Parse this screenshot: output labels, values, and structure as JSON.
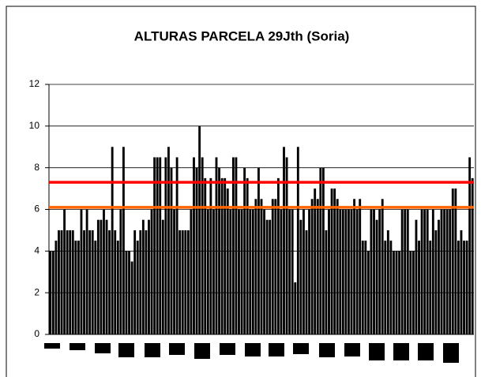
{
  "chart_data": {
    "type": "bar",
    "title": "ALTURAS PARCELA 29Jth (Soria)",
    "values": [
      4,
      4,
      4.5,
      5,
      5,
      6,
      5,
      5,
      5,
      4.5,
      4.5,
      6,
      5,
      6,
      5,
      5,
      4.5,
      5.5,
      5.5,
      6,
      5.5,
      5,
      9,
      5,
      4.5,
      6,
      9,
      4,
      4,
      3.5,
      5,
      4.5,
      5,
      5.5,
      5,
      5.5,
      6,
      8.5,
      8.5,
      8.5,
      5.5,
      8.5,
      9,
      8,
      6,
      8.5,
      5,
      5,
      5,
      5,
      6,
      8.5,
      8,
      10,
      8.5,
      7.5,
      6,
      7.5,
      6,
      8.5,
      8,
      7.5,
      7.5,
      7,
      6,
      8.5,
      8.5,
      6,
      6,
      8,
      7.5,
      6,
      6,
      6.5,
      8,
      6.5,
      6,
      5.5,
      5.5,
      6.5,
      6.5,
      7.5,
      6,
      9,
      8.5,
      6,
      6,
      2.5,
      9,
      5.5,
      6,
      5,
      6,
      6.5,
      7,
      6.5,
      8,
      8,
      5,
      6,
      7,
      7,
      6.5,
      6,
      6,
      6,
      6,
      6,
      6.5,
      6,
      6.5,
      4.5,
      4.5,
      4,
      6,
      6,
      5.5,
      6,
      6.5,
      4.5,
      5,
      4.5,
      4,
      4,
      4,
      6,
      6,
      6,
      4,
      4,
      5.5,
      4.5,
      6,
      6,
      6,
      4.5,
      6,
      5,
      5.5,
      6,
      6,
      6,
      6,
      7,
      7,
      4.5,
      5,
      4.5,
      4.5,
      8.5,
      7.5
    ],
    "color": "#000000",
    "ylim": [
      0,
      12
    ],
    "yticks": [
      0,
      2,
      4,
      6,
      8,
      10,
      12
    ],
    "grid": true,
    "reference_lines": [
      {
        "value": 7.3,
        "color": "#ff0000"
      },
      {
        "value": 6.1,
        "color": "#ff6600"
      }
    ]
  }
}
